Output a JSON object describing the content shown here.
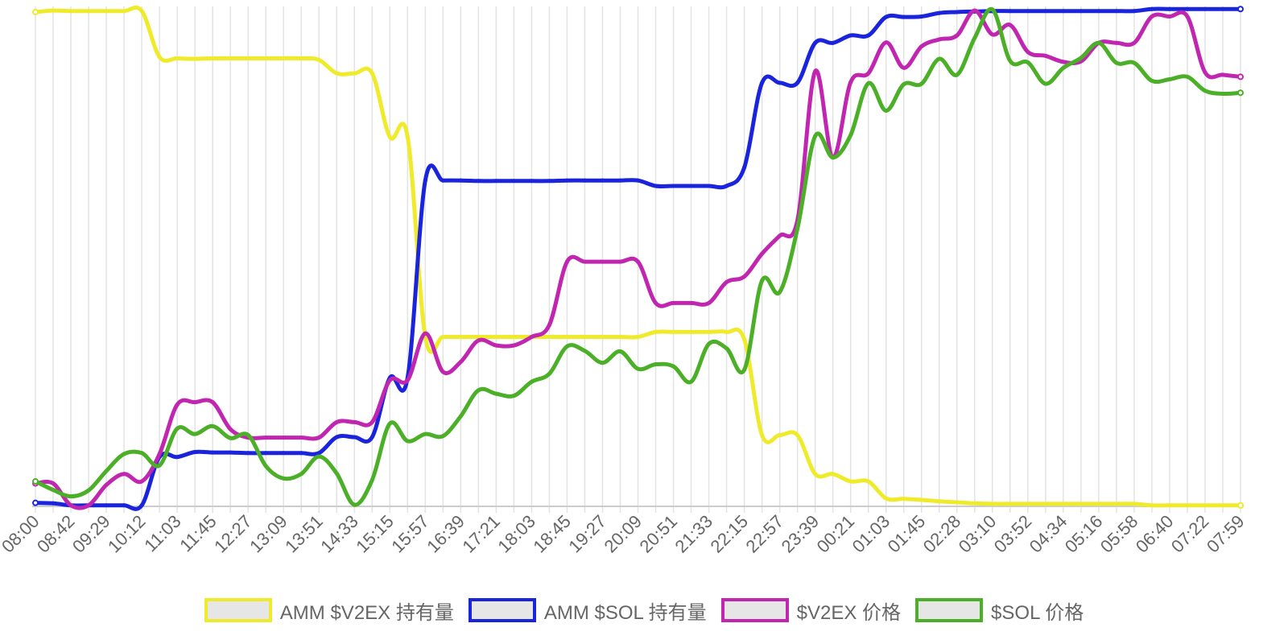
{
  "chart_data": {
    "type": "line",
    "title": "",
    "xlabel": "",
    "ylabel": "",
    "grid": {
      "vertical": true,
      "horizontal": false
    },
    "legend_position": "bottom",
    "x": [
      "08:00",
      "08:21",
      "08:42",
      "09:05",
      "09:29",
      "09:50",
      "10:12",
      "10:37",
      "11:03",
      "11:24",
      "11:45",
      "12:06",
      "12:27",
      "12:48",
      "13:09",
      "13:30",
      "13:51",
      "14:12",
      "14:33",
      "14:54",
      "15:15",
      "15:36",
      "15:57",
      "16:18",
      "16:39",
      "17:00",
      "17:21",
      "17:42",
      "18:03",
      "18:24",
      "18:45",
      "19:06",
      "19:27",
      "19:48",
      "20:09",
      "20:30",
      "20:51",
      "21:12",
      "21:33",
      "21:54",
      "22:15",
      "22:36",
      "22:57",
      "23:18",
      "23:39",
      "24:00",
      "00:21",
      "00:42",
      "01:03",
      "01:24",
      "01:45",
      "02:06",
      "02:28",
      "02:49",
      "03:10",
      "03:31",
      "03:52",
      "04:13",
      "04:34",
      "04:55",
      "05:16",
      "05:37",
      "05:58",
      "06:19",
      "06:40",
      "07:01",
      "07:22",
      "07:43",
      "07:59"
    ],
    "x_tick_labels": [
      "08:00",
      "08:42",
      "09:29",
      "10:12",
      "11:03",
      "11:45",
      "12:27",
      "13:09",
      "13:51",
      "14:33",
      "15:15",
      "15:57",
      "16:39",
      "17:21",
      "18:03",
      "18:45",
      "19:27",
      "20:09",
      "20:51",
      "21:33",
      "22:15",
      "22:57",
      "23:39",
      "00:21",
      "01:03",
      "01:45",
      "02:28",
      "03:10",
      "03:52",
      "04:34",
      "05:16",
      "05:58",
      "06:40",
      "07:22",
      "07:59"
    ],
    "ylim": [
      0,
      100
    ],
    "series": [
      {
        "name": "AMM $V2EX 持有量",
        "color": "#f0eb2a",
        "values": [
          99.2,
          99.5,
          99.4,
          99.4,
          99.4,
          99.4,
          99.4,
          90.2,
          89.9,
          89.8,
          89.9,
          89.9,
          89.9,
          89.9,
          89.9,
          89.9,
          89.6,
          86.9,
          86.9,
          86.9,
          74.1,
          74.2,
          34.0,
          34.0,
          34.0,
          34.0,
          34.0,
          34.0,
          34.0,
          34.0,
          34.0,
          34.0,
          34.0,
          34.0,
          34.0,
          35.0,
          35.0,
          35.0,
          35.0,
          35.0,
          33.5,
          14.3,
          14.3,
          14.3,
          6.5,
          6.5,
          5.0,
          5.0,
          1.6,
          1.5,
          1.3,
          1.0,
          0.8,
          0.6,
          0.5,
          0.5,
          0.5,
          0.5,
          0.5,
          0.5,
          0.5,
          0.5,
          0.5,
          0.2,
          0.2,
          0.2,
          0.2,
          0.2,
          0.2
        ]
      },
      {
        "name": "AMM $SOL 持有量",
        "color": "#1a24dd",
        "values": [
          0.7,
          0.6,
          0.2,
          0.2,
          0.2,
          0.2,
          0.2,
          9.9,
          9.9,
          10.9,
          10.8,
          10.8,
          10.7,
          10.7,
          10.7,
          10.7,
          10.7,
          13.9,
          13.9,
          13.9,
          25.8,
          25.8,
          65.4,
          65.4,
          65.4,
          65.3,
          65.3,
          65.3,
          65.3,
          65.3,
          65.4,
          65.4,
          65.4,
          65.4,
          65.4,
          64.3,
          64.3,
          64.3,
          64.3,
          64.3,
          68.0,
          85.0,
          85.0,
          85.0,
          93.0,
          93.0,
          94.5,
          94.5,
          98.2,
          98.2,
          98.3,
          99.0,
          99.2,
          99.3,
          99.4,
          99.4,
          99.4,
          99.4,
          99.4,
          99.4,
          99.4,
          99.4,
          99.4,
          99.8,
          99.8,
          99.8,
          99.8,
          99.8,
          99.8
        ]
      },
      {
        "name": "$V2EX 价格",
        "color": "#c026b0",
        "values": [
          4.6,
          4.6,
          0.2,
          0.2,
          4.3,
          6.5,
          5.0,
          10.5,
          20.4,
          20.9,
          20.9,
          15.5,
          13.8,
          13.8,
          13.8,
          13.8,
          13.8,
          16.9,
          16.9,
          16.9,
          25.3,
          25.3,
          34.7,
          27.0,
          29.0,
          33.3,
          32.3,
          32.3,
          34.0,
          36.4,
          49.1,
          49.1,
          49.1,
          49.1,
          49.1,
          40.8,
          40.8,
          40.8,
          40.8,
          45.0,
          46.1,
          50.7,
          54.3,
          57.4,
          87.3,
          70.0,
          85.1,
          86.9,
          93.1,
          88.0,
          92.3,
          93.7,
          94.5,
          99.5,
          94.7,
          96.6,
          91.2,
          90.4,
          89.2,
          89.3,
          93.0,
          93.0,
          93.0,
          98.3,
          98.3,
          98.3,
          87.1,
          86.6,
          86.2
        ]
      },
      {
        "name": "$SOL 价格",
        "color": "#4caf28",
        "values": [
          5.0,
          3.3,
          2.0,
          3.2,
          7.1,
          10.5,
          10.7,
          8.2,
          15.6,
          14.5,
          16.1,
          13.7,
          14.3,
          8.1,
          5.6,
          6.5,
          10.0,
          6.6,
          0.3,
          5.3,
          16.6,
          13.1,
          14.5,
          14.1,
          18.1,
          23.3,
          22.6,
          22.2,
          25.0,
          26.6,
          32.1,
          31.2,
          28.8,
          31.1,
          27.6,
          28.5,
          28.1,
          25.0,
          32.6,
          31.7,
          27.4,
          45.3,
          43.0,
          55.7,
          74.3,
          70.0,
          74.5,
          84.9,
          79.4,
          84.7,
          84.8,
          89.8,
          86.6,
          94.0,
          99.7,
          89.4,
          89.1,
          84.8,
          88.0,
          90.0,
          93.0,
          89.0,
          89.0,
          85.4,
          85.7,
          86.2,
          83.4,
          82.8,
          83.0
        ]
      }
    ]
  }
}
